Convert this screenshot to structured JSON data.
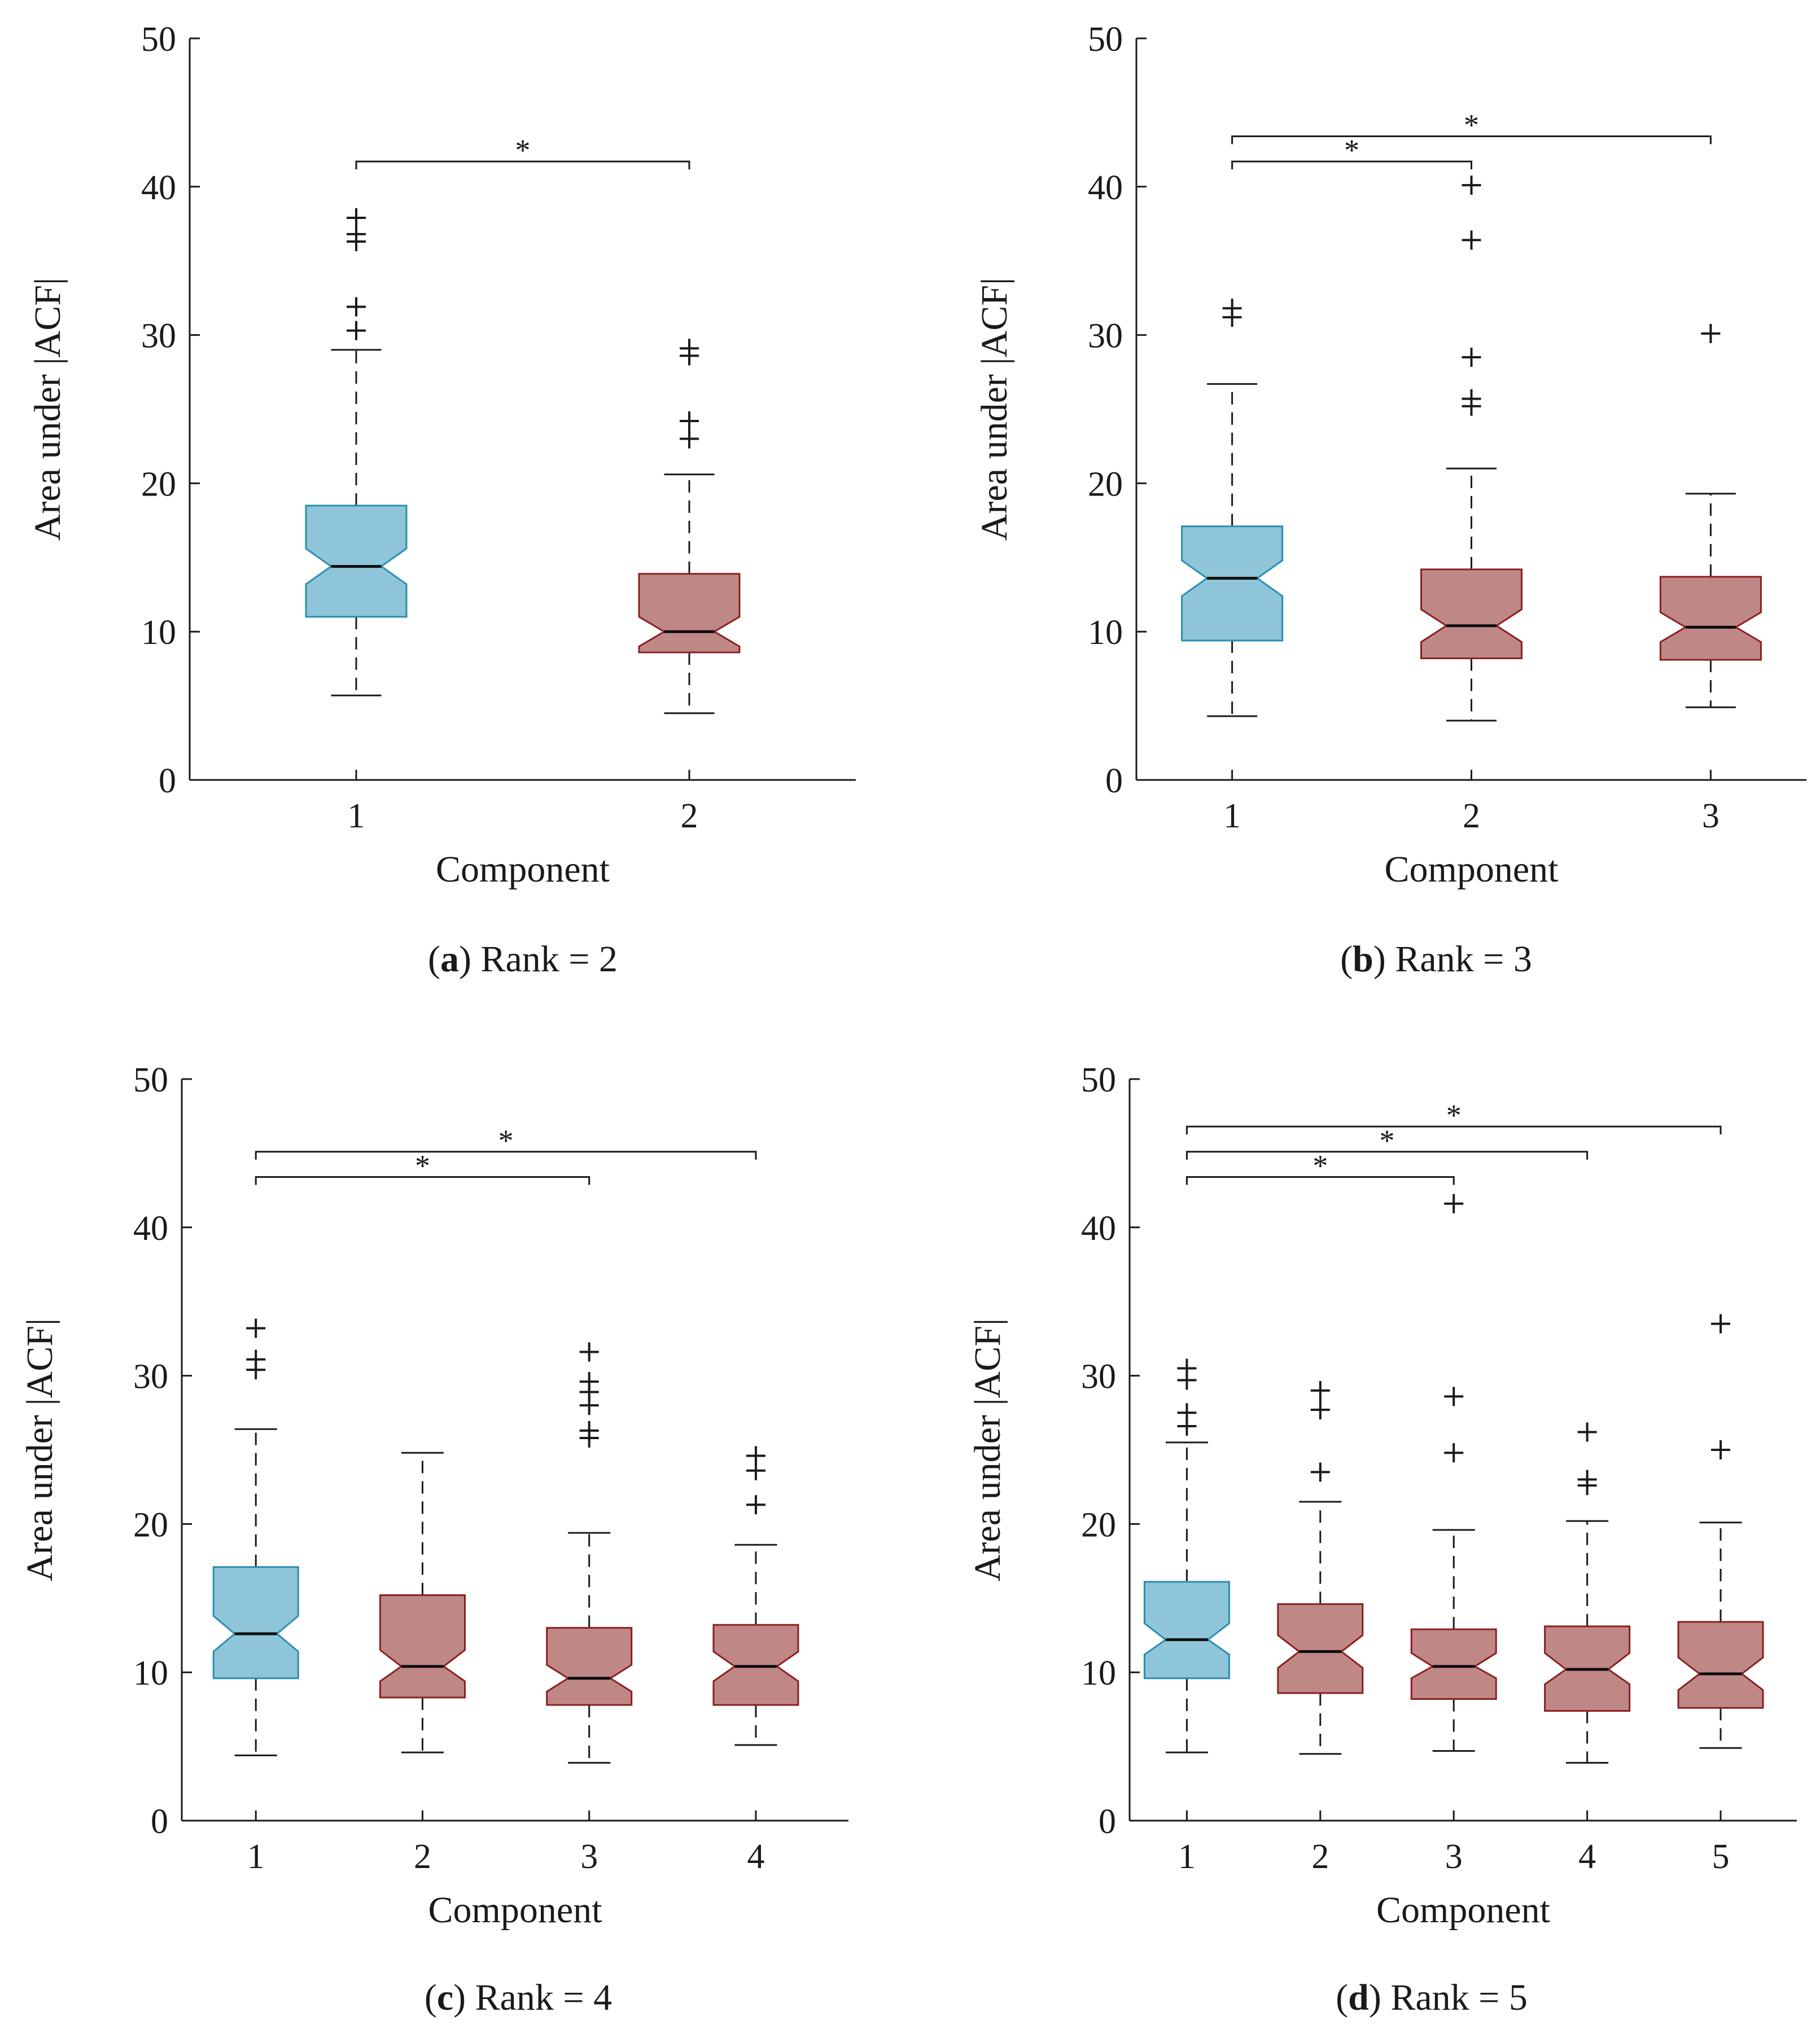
{
  "figure": {
    "captions": [
      {
        "letter": "a",
        "rest": ") Rank = 2"
      },
      {
        "letter": "b",
        "rest": ") Rank = 3"
      },
      {
        "letter": "c",
        "rest": ") Rank = 4"
      },
      {
        "letter": "d",
        "rest": ") Rank = 5"
      }
    ]
  },
  "colors": {
    "first_fill": "#8ec5d9",
    "first_edge": "#2a8db3",
    "other_fill": "#c08787",
    "other_edge": "#8b1f1f",
    "ink": "#1a1a1a"
  },
  "chart_data": [
    {
      "type": "boxplot",
      "panel": "a",
      "xlabel": "Component",
      "ylabel": "Area under |ACF|",
      "ylim": [
        0,
        50
      ],
      "yticks": [
        0,
        10,
        20,
        30,
        40,
        50
      ],
      "categories": [
        "1",
        "2"
      ],
      "boxes": [
        {
          "q1": 11.0,
          "median": 14.4,
          "q3": 18.5,
          "notch_lo": 13.2,
          "notch_hi": 15.6,
          "whisker_lo": 5.7,
          "whisker_hi": 29.0,
          "outliers": [
            30.3,
            31.9,
            36.3,
            36.8,
            37.9
          ]
        },
        {
          "q1": 8.6,
          "median": 10.0,
          "q3": 13.9,
          "notch_lo": 9.0,
          "notch_hi": 11.0,
          "whisker_lo": 4.5,
          "whisker_hi": 20.6,
          "outliers": [
            23.0,
            24.2,
            28.6,
            29.1
          ]
        }
      ],
      "significance": [
        {
          "from": "1",
          "to": "2",
          "y": 41.7,
          "label": "*"
        }
      ]
    },
    {
      "type": "boxplot",
      "panel": "b",
      "xlabel": "Component",
      "ylabel": "Area under |ACF|",
      "ylim": [
        0,
        50
      ],
      "yticks": [
        0,
        10,
        20,
        30,
        40,
        50
      ],
      "categories": [
        "1",
        "2",
        "3"
      ],
      "boxes": [
        {
          "q1": 9.4,
          "median": 13.6,
          "q3": 17.1,
          "notch_lo": 12.4,
          "notch_hi": 14.8,
          "whisker_lo": 4.3,
          "whisker_hi": 26.7,
          "outliers": [
            31.2,
            31.8
          ]
        },
        {
          "q1": 8.2,
          "median": 10.4,
          "q3": 14.2,
          "notch_lo": 9.3,
          "notch_hi": 11.5,
          "whisker_lo": 4.0,
          "whisker_hi": 21.0,
          "outliers": [
            25.2,
            25.7,
            28.5,
            36.4,
            40.1
          ]
        },
        {
          "q1": 8.1,
          "median": 10.3,
          "q3": 13.7,
          "notch_lo": 9.3,
          "notch_hi": 11.3,
          "whisker_lo": 4.9,
          "whisker_hi": 19.3,
          "outliers": [
            30.1
          ]
        }
      ],
      "significance": [
        {
          "from": "1",
          "to": "2",
          "y": 41.7,
          "label": "*"
        },
        {
          "from": "1",
          "to": "3",
          "y": 43.4,
          "label": "*"
        }
      ]
    },
    {
      "type": "boxplot",
      "panel": "c",
      "xlabel": "Component",
      "ylabel": "Area under |ACF|",
      "ylim": [
        0,
        50
      ],
      "yticks": [
        0,
        10,
        20,
        30,
        40,
        50
      ],
      "categories": [
        "1",
        "2",
        "3",
        "4"
      ],
      "boxes": [
        {
          "q1": 9.6,
          "median": 12.6,
          "q3": 17.1,
          "notch_lo": 11.4,
          "notch_hi": 13.8,
          "whisker_lo": 4.4,
          "whisker_hi": 26.4,
          "outliers": [
            30.4,
            31.1,
            33.2
          ]
        },
        {
          "q1": 8.3,
          "median": 10.4,
          "q3": 15.2,
          "notch_lo": 9.4,
          "notch_hi": 11.5,
          "whisker_lo": 4.6,
          "whisker_hi": 24.8,
          "outliers": []
        },
        {
          "q1": 7.8,
          "median": 9.6,
          "q3": 13.0,
          "notch_lo": 8.7,
          "notch_hi": 10.5,
          "whisker_lo": 3.9,
          "whisker_hi": 19.4,
          "outliers": [
            25.8,
            26.3,
            28.0,
            28.9,
            29.6,
            31.6
          ]
        },
        {
          "q1": 7.8,
          "median": 10.4,
          "q3": 13.2,
          "notch_lo": 9.4,
          "notch_hi": 11.4,
          "whisker_lo": 5.1,
          "whisker_hi": 18.6,
          "outliers": [
            21.3,
            23.6,
            24.6
          ]
        }
      ],
      "significance": [
        {
          "from": "1",
          "to": "3",
          "y": 43.4,
          "label": "*"
        },
        {
          "from": "1",
          "to": "4",
          "y": 45.1,
          "label": "*"
        }
      ]
    },
    {
      "type": "boxplot",
      "panel": "d",
      "xlabel": "Component",
      "ylabel": "Area under |ACF|",
      "ylim": [
        0,
        50
      ],
      "yticks": [
        0,
        10,
        20,
        30,
        40,
        50
      ],
      "categories": [
        "1",
        "2",
        "3",
        "4",
        "5"
      ],
      "boxes": [
        {
          "q1": 9.6,
          "median": 12.2,
          "q3": 16.1,
          "notch_lo": 11.2,
          "notch_hi": 13.3,
          "whisker_lo": 4.6,
          "whisker_hi": 25.5,
          "outliers": [
            26.6,
            27.5,
            29.7,
            30.5
          ]
        },
        {
          "q1": 8.6,
          "median": 11.4,
          "q3": 14.6,
          "notch_lo": 10.3,
          "notch_hi": 12.5,
          "whisker_lo": 4.5,
          "whisker_hi": 21.5,
          "outliers": [
            23.5,
            27.7,
            29.0
          ]
        },
        {
          "q1": 8.2,
          "median": 10.4,
          "q3": 12.9,
          "notch_lo": 9.6,
          "notch_hi": 11.3,
          "whisker_lo": 4.7,
          "whisker_hi": 19.6,
          "outliers": [
            24.8,
            28.6,
            41.6
          ]
        },
        {
          "q1": 7.4,
          "median": 10.2,
          "q3": 13.1,
          "notch_lo": 9.2,
          "notch_hi": 11.3,
          "whisker_lo": 3.9,
          "whisker_hi": 20.2,
          "outliers": [
            22.6,
            23.0,
            26.2
          ]
        },
        {
          "q1": 7.6,
          "median": 9.9,
          "q3": 13.4,
          "notch_lo": 8.8,
          "notch_hi": 11.0,
          "whisker_lo": 4.9,
          "whisker_hi": 20.1,
          "outliers": [
            25.0,
            33.5
          ]
        }
      ],
      "significance": [
        {
          "from": "1",
          "to": "3",
          "y": 43.4,
          "label": "*"
        },
        {
          "from": "1",
          "to": "4",
          "y": 45.1,
          "label": "*"
        },
        {
          "from": "1",
          "to": "5",
          "y": 46.8,
          "label": "*"
        }
      ]
    }
  ]
}
